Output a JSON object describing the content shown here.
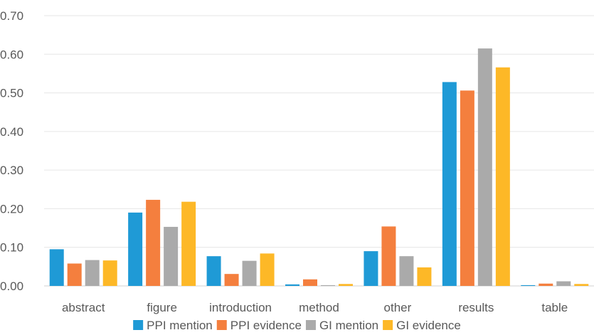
{
  "chart_data": {
    "type": "bar",
    "categories": [
      "abstract",
      "figure",
      "introduction",
      "method",
      "other",
      "results",
      "table"
    ],
    "series": [
      {
        "name": "PPI mention",
        "color": "#1f9ad6",
        "values": [
          0.095,
          0.19,
          0.077,
          0.004,
          0.09,
          0.528,
          0.002
        ]
      },
      {
        "name": "PPI evidence",
        "color": "#f47f3e",
        "values": [
          0.058,
          0.223,
          0.031,
          0.017,
          0.154,
          0.506,
          0.006
        ]
      },
      {
        "name": "GI mention",
        "color": "#aaaaaa",
        "values": [
          0.067,
          0.153,
          0.065,
          0.002,
          0.077,
          0.615,
          0.012
        ]
      },
      {
        "name": "GI evidence",
        "color": "#fdb827",
        "values": [
          0.066,
          0.218,
          0.084,
          0.005,
          0.048,
          0.566,
          0.005
        ]
      }
    ],
    "yticks": [
      "0.00",
      "0.10",
      "0.20",
      "0.30",
      "0.40",
      "0.50",
      "0.60",
      "0.70"
    ],
    "ylim": [
      0,
      0.7
    ],
    "grid": true,
    "legend_position": "bottom"
  }
}
